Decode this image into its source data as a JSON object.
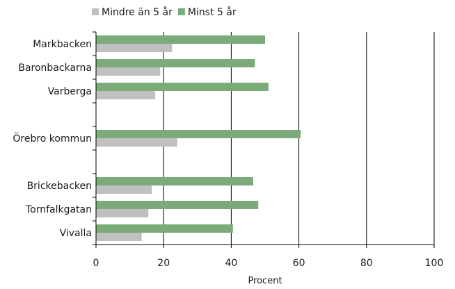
{
  "chart_data": {
    "type": "bar",
    "orientation": "horizontal",
    "title": "",
    "xlabel": "Procent",
    "ylabel": "",
    "xlim": [
      0,
      100
    ],
    "x_ticks": [
      "0",
      "20",
      "40",
      "60",
      "80",
      "100"
    ],
    "grid": "vertical",
    "legend_position": "top",
    "categories": [
      "Markbacken",
      "Baronbackarna",
      "Varberga",
      "",
      "Örebro kommun",
      "",
      "Brickebacken",
      "Tornfalkgatan",
      "Vivalla"
    ],
    "series": [
      {
        "name": "Mindre än 5 år",
        "color": "#c0c0c0",
        "values": [
          22.5,
          19,
          17.5,
          null,
          24,
          null,
          16.5,
          15.5,
          13.5
        ]
      },
      {
        "name": "Minst 5 år",
        "color": "#7aab78",
        "values": [
          50,
          47,
          51,
          null,
          60.5,
          null,
          46.5,
          48,
          40.5
        ]
      }
    ]
  }
}
